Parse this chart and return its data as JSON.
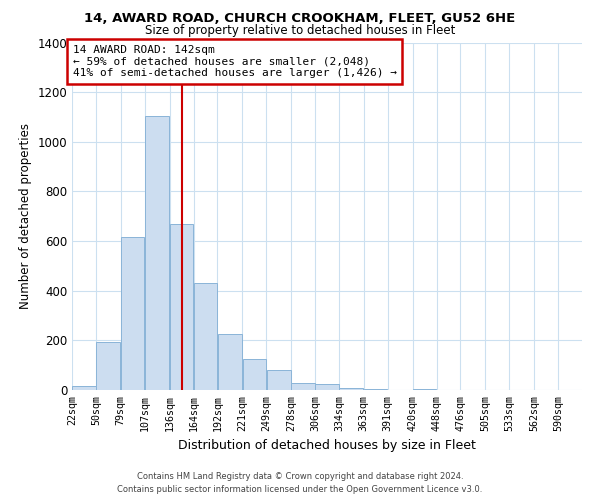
{
  "title": "14, AWARD ROAD, CHURCH CROOKHAM, FLEET, GU52 6HE",
  "subtitle": "Size of property relative to detached houses in Fleet",
  "xlabel": "Distribution of detached houses by size in Fleet",
  "ylabel": "Number of detached properties",
  "bar_color": "#ccddf0",
  "bar_edge_color": "#8ab4d8",
  "bar_left_edges": [
    22,
    50,
    79,
    107,
    136,
    164,
    192,
    221,
    249,
    278,
    306,
    334,
    363,
    391,
    420,
    448,
    476,
    505,
    533,
    562
  ],
  "bar_widths": [
    28,
    29,
    28,
    29,
    28,
    28,
    29,
    28,
    29,
    28,
    28,
    29,
    28,
    29,
    28,
    28,
    29,
    28,
    29,
    28
  ],
  "bar_heights": [
    15,
    195,
    615,
    1105,
    670,
    430,
    225,
    125,
    80,
    30,
    25,
    10,
    5,
    0,
    5,
    0,
    0,
    0,
    0,
    0
  ],
  "tick_labels": [
    "22sqm",
    "50sqm",
    "79sqm",
    "107sqm",
    "136sqm",
    "164sqm",
    "192sqm",
    "221sqm",
    "249sqm",
    "278sqm",
    "306sqm",
    "334sqm",
    "363sqm",
    "391sqm",
    "420sqm",
    "448sqm",
    "476sqm",
    "505sqm",
    "533sqm",
    "562sqm",
    "590sqm"
  ],
  "tick_positions": [
    22,
    50,
    79,
    107,
    136,
    164,
    192,
    221,
    249,
    278,
    306,
    334,
    363,
    391,
    420,
    448,
    476,
    505,
    533,
    562,
    590
  ],
  "redline_x": 150,
  "xlim": [
    22,
    618
  ],
  "ylim": [
    0,
    1400
  ],
  "yticks": [
    0,
    200,
    400,
    600,
    800,
    1000,
    1200,
    1400
  ],
  "annotation_line1": "14 AWARD ROAD: 142sqm",
  "annotation_line2": "← 59% of detached houses are smaller (2,048)",
  "annotation_line3": "41% of semi-detached houses are larger (1,426) →",
  "annotation_box_color": "#ffffff",
  "annotation_box_edgecolor": "#cc0000",
  "footer_line1": "Contains HM Land Registry data © Crown copyright and database right 2024.",
  "footer_line2": "Contains public sector information licensed under the Open Government Licence v3.0.",
  "background_color": "#ffffff",
  "grid_color": "#cce0f0"
}
